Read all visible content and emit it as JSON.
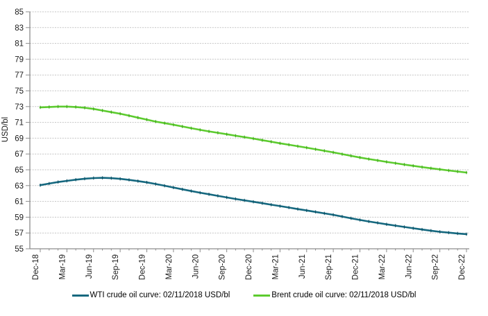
{
  "chart_data": {
    "type": "line",
    "title": "",
    "xlabel": "",
    "ylabel": "USD/bl",
    "ylim": [
      55,
      85
    ],
    "y_ticks": [
      85,
      83,
      81,
      79,
      77,
      75,
      73,
      71,
      69,
      67,
      65,
      63,
      61,
      59,
      57,
      55
    ],
    "x_tick_labels": [
      "Dec-18",
      "Mar-19",
      "Jun-19",
      "Sep-19",
      "Dec-19",
      "Mar-20",
      "Jun-20",
      "Sep-20",
      "Dec-20",
      "Mar-21",
      "Jun-21",
      "Sep-21",
      "Dec-21",
      "Mar-22",
      "Jun-22",
      "Sep-22",
      "Dec-22"
    ],
    "x_resolution": "monthly, 49 points from Dec-18 to Dec-22, labels every 3rd month",
    "grid": "horizontal dotted gridlines",
    "legend_position": "bottom",
    "axis_color": "#8C8C8C",
    "grid_color": "#C3C3C3",
    "text_color": "#1A1A1A",
    "series": [
      {
        "name": "WTI crude oil curve: 02/11/2018 USD/bl",
        "color": "#15687F",
        "marker_color": "#0D4F63",
        "values": [
          63.05,
          63.25,
          63.45,
          63.6,
          63.75,
          63.87,
          63.95,
          63.98,
          63.94,
          63.85,
          63.72,
          63.57,
          63.4,
          63.2,
          62.98,
          62.75,
          62.53,
          62.31,
          62.1,
          61.9,
          61.7,
          61.5,
          61.31,
          61.13,
          60.95,
          60.77,
          60.58,
          60.4,
          60.22,
          60.03,
          59.85,
          59.67,
          59.48,
          59.3,
          59.08,
          58.86,
          58.65,
          58.46,
          58.28,
          58.1,
          57.93,
          57.76,
          57.6,
          57.44,
          57.29,
          57.15,
          57.04,
          56.94,
          56.85
        ]
      },
      {
        "name": "Brent crude oil curve: 02/11/2018 USD/bl",
        "color": "#5CCB2E",
        "marker_color": "#3FA51C",
        "values": [
          72.9,
          72.95,
          73.0,
          73.0,
          72.95,
          72.85,
          72.7,
          72.5,
          72.3,
          72.1,
          71.85,
          71.6,
          71.35,
          71.1,
          70.9,
          70.7,
          70.48,
          70.26,
          70.05,
          69.86,
          69.68,
          69.5,
          69.31,
          69.13,
          68.95,
          68.75,
          68.55,
          68.35,
          68.17,
          67.98,
          67.8,
          67.6,
          67.4,
          67.2,
          66.98,
          66.76,
          66.55,
          66.36,
          66.18,
          66.0,
          65.83,
          65.66,
          65.5,
          65.34,
          65.19,
          65.05,
          64.91,
          64.78,
          64.65
        ]
      }
    ]
  }
}
